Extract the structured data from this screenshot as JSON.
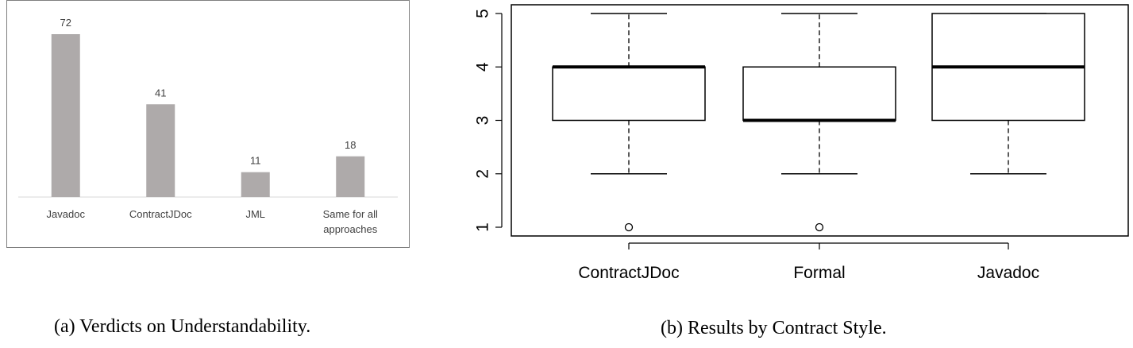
{
  "captions": {
    "a": "(a) Verdicts on Understandability.",
    "b": "(b) Results by Contract Style."
  },
  "colors": {
    "bar": "#aeaaaa",
    "box_stroke": "#000000"
  },
  "chart_data": [
    {
      "type": "bar",
      "title": "",
      "xlabel": "",
      "ylabel": "",
      "categories": [
        [
          "Javadoc"
        ],
        [
          "ContractJDoc"
        ],
        [
          "JML"
        ],
        [
          "Same for all",
          "approaches"
        ]
      ],
      "values": [
        72,
        41,
        11,
        18
      ],
      "ylim": [
        0,
        80
      ],
      "grid": false,
      "data_labels": true
    },
    {
      "type": "box",
      "title": "",
      "xlabel": "",
      "ylabel": "",
      "categories": [
        "ContractJDoc",
        "Formal",
        "Javadoc"
      ],
      "boxes": [
        {
          "whisker_low": 2,
          "q1": 3,
          "median": 4,
          "q3": 4,
          "whisker_high": 5,
          "outliers": [
            1
          ]
        },
        {
          "whisker_low": 2,
          "q1": 3,
          "median": 3,
          "q3": 4,
          "whisker_high": 5,
          "outliers": [
            1
          ]
        },
        {
          "whisker_low": 2,
          "q1": 3,
          "median": 4,
          "q3": 5,
          "whisker_high": 5,
          "outliers": []
        }
      ],
      "ylim": [
        1,
        5
      ],
      "yticks": [
        "1",
        "2",
        "3",
        "4",
        "5"
      ]
    }
  ]
}
